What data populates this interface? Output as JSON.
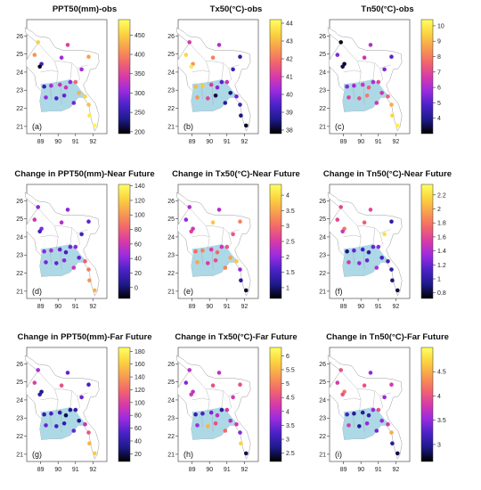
{
  "colorbar_gradient": [
    "#000000",
    "#1e1a8c",
    "#4b22c8",
    "#9a2be0",
    "#d83aa8",
    "#f2666c",
    "#f79d4f",
    "#fbd33f",
    "#ffff60"
  ],
  "map_fill_color": "#add8e6",
  "panels": [
    {
      "label": "(a)",
      "title": "PPT50(mm)-obs",
      "colorbar": {
        "min": 195,
        "max": 490,
        "ticks": [
          200,
          250,
          300,
          350,
          400,
          450
        ]
      },
      "points": [
        [
          88.85,
          25.65,
          452
        ],
        [
          88.65,
          24.95,
          410
        ],
        [
          89.05,
          24.45,
          262
        ],
        [
          88.95,
          24.3,
          205
        ],
        [
          90.2,
          24.8,
          310
        ],
        [
          90.55,
          25.5,
          350
        ],
        [
          91.75,
          24.85,
          420
        ],
        [
          91.35,
          24.15,
          310
        ],
        [
          89.2,
          23.2,
          255
        ],
        [
          89.6,
          23.25,
          310
        ],
        [
          90.1,
          23.3,
          330
        ],
        [
          90.45,
          23.15,
          335
        ],
        [
          90.7,
          23.45,
          300
        ],
        [
          91.0,
          23.45,
          380
        ],
        [
          91.2,
          22.85,
          430
        ],
        [
          89.3,
          22.6,
          305
        ],
        [
          89.9,
          22.55,
          270
        ],
        [
          90.35,
          22.7,
          280
        ],
        [
          90.9,
          22.3,
          285
        ],
        [
          91.55,
          22.65,
          455
        ],
        [
          91.75,
          22.2,
          440
        ],
        [
          91.8,
          21.6,
          470
        ],
        [
          92.1,
          21.05,
          480
        ]
      ]
    },
    {
      "label": "(b)",
      "title": "Tx50(°C)-obs",
      "colorbar": {
        "min": 37.8,
        "max": 44.2,
        "ticks": [
          38,
          39,
          40,
          41,
          42,
          43,
          44
        ]
      },
      "points": [
        [
          88.85,
          25.65,
          41.0
        ],
        [
          88.65,
          24.95,
          43.5
        ],
        [
          89.05,
          24.45,
          42.5
        ],
        [
          88.95,
          24.3,
          43.8
        ],
        [
          90.2,
          24.8,
          42.2
        ],
        [
          90.55,
          25.5,
          40.5
        ],
        [
          91.75,
          24.85,
          39.0
        ],
        [
          91.35,
          24.15,
          39.2
        ],
        [
          89.2,
          23.2,
          43.0
        ],
        [
          89.6,
          23.25,
          43.2
        ],
        [
          90.1,
          23.3,
          41.0
        ],
        [
          90.45,
          23.15,
          40.0
        ],
        [
          90.7,
          23.45,
          39.5
        ],
        [
          91.0,
          23.45,
          40.8
        ],
        [
          91.2,
          22.85,
          38.5
        ],
        [
          89.3,
          22.6,
          42.5
        ],
        [
          89.9,
          22.55,
          41.2
        ],
        [
          90.35,
          22.7,
          38.2
        ],
        [
          90.9,
          22.3,
          38.8
        ],
        [
          91.55,
          22.65,
          39.8
        ],
        [
          91.75,
          22.2,
          39.2
        ],
        [
          91.8,
          21.6,
          38.5
        ],
        [
          92.1,
          21.05,
          38.0
        ]
      ]
    },
    {
      "label": "(c)",
      "title": "Tn50(°C)-obs",
      "colorbar": {
        "min": 3.0,
        "max": 10.4,
        "ticks": [
          4,
          5,
          6,
          7,
          8,
          9,
          10
        ]
      },
      "points": [
        [
          88.85,
          25.65,
          3.2
        ],
        [
          88.65,
          24.95,
          5.5
        ],
        [
          89.05,
          24.45,
          3.3
        ],
        [
          88.95,
          24.3,
          3.5
        ],
        [
          90.2,
          24.8,
          6.5
        ],
        [
          90.55,
          25.5,
          6.2
        ],
        [
          91.75,
          24.85,
          5.0
        ],
        [
          91.35,
          24.15,
          5.5
        ],
        [
          89.2,
          23.2,
          5.5
        ],
        [
          89.6,
          23.25,
          5.8
        ],
        [
          90.1,
          23.3,
          6.5
        ],
        [
          90.45,
          23.15,
          7.5
        ],
        [
          90.7,
          23.45,
          6.0
        ],
        [
          91.0,
          23.45,
          7.0
        ],
        [
          91.2,
          22.85,
          6.5
        ],
        [
          89.3,
          22.6,
          6.8
        ],
        [
          89.9,
          22.55,
          7.2
        ],
        [
          90.35,
          22.7,
          8.0
        ],
        [
          90.9,
          22.3,
          6.5
        ],
        [
          91.55,
          22.65,
          7.5
        ],
        [
          91.75,
          22.2,
          8.8
        ],
        [
          91.8,
          21.6,
          9.5
        ],
        [
          92.1,
          21.05,
          10.0
        ]
      ]
    },
    {
      "label": "(d)",
      "title": "Change in PPT50(mm)-Near Future",
      "colorbar": {
        "min": -15,
        "max": 142,
        "ticks": [
          0,
          20,
          40,
          60,
          80,
          100,
          120,
          140
        ]
      },
      "points": [
        [
          88.85,
          25.65,
          40
        ],
        [
          88.65,
          24.95,
          60
        ],
        [
          89.05,
          24.45,
          40
        ],
        [
          88.95,
          24.3,
          20
        ],
        [
          90.2,
          24.8,
          50
        ],
        [
          90.55,
          25.5,
          40
        ],
        [
          91.75,
          24.85,
          30
        ],
        [
          91.35,
          24.15,
          20
        ],
        [
          89.2,
          23.2,
          40
        ],
        [
          89.6,
          23.25,
          50
        ],
        [
          90.1,
          23.3,
          30
        ],
        [
          90.45,
          23.15,
          20
        ],
        [
          90.7,
          23.45,
          35
        ],
        [
          91.0,
          23.45,
          40
        ],
        [
          91.2,
          22.85,
          30
        ],
        [
          89.3,
          22.6,
          35
        ],
        [
          89.9,
          22.55,
          30
        ],
        [
          90.35,
          22.7,
          40
        ],
        [
          90.9,
          22.3,
          60
        ],
        [
          91.55,
          22.65,
          80
        ],
        [
          91.75,
          22.2,
          90
        ],
        [
          91.8,
          21.6,
          100
        ],
        [
          92.1,
          21.05,
          110
        ]
      ]
    },
    {
      "label": "(e)",
      "title": "Change in Tx50(°C)-Near Future",
      "colorbar": {
        "min": 0.65,
        "max": 4.35,
        "ticks": [
          1.0,
          1.5,
          2.0,
          2.5,
          3.0,
          3.5,
          4.0
        ]
      },
      "points": [
        [
          88.85,
          25.65,
          2.2
        ],
        [
          88.65,
          24.95,
          2.0
        ],
        [
          89.05,
          24.45,
          2.4
        ],
        [
          88.95,
          24.3,
          2.6
        ],
        [
          90.2,
          24.8,
          3.8
        ],
        [
          90.55,
          25.5,
          2.2
        ],
        [
          91.75,
          24.85,
          3.2
        ],
        [
          91.35,
          24.15,
          2.8
        ],
        [
          89.2,
          23.2,
          3.0
        ],
        [
          89.6,
          23.25,
          3.2
        ],
        [
          90.1,
          23.3,
          2.5
        ],
        [
          90.45,
          23.15,
          3.0
        ],
        [
          90.7,
          23.45,
          2.4
        ],
        [
          91.0,
          23.45,
          2.8
        ],
        [
          91.2,
          22.85,
          3.5
        ],
        [
          89.3,
          22.6,
          3.5
        ],
        [
          89.9,
          22.55,
          2.5
        ],
        [
          90.35,
          22.7,
          2.7
        ],
        [
          90.9,
          22.3,
          3.2
        ],
        [
          91.55,
          22.65,
          3.8
        ],
        [
          91.75,
          22.2,
          2.0
        ],
        [
          91.8,
          21.6,
          1.2
        ],
        [
          92.1,
          21.05,
          0.8
        ]
      ]
    },
    {
      "label": "(f)",
      "title": "Change in Tn50(°C)-Near Future",
      "colorbar": {
        "min": 0.72,
        "max": 2.35,
        "ticks": [
          0.8,
          1.0,
          1.2,
          1.4,
          1.6,
          1.8,
          2.0,
          2.2
        ]
      },
      "points": [
        [
          88.85,
          25.65,
          1.6
        ],
        [
          88.65,
          24.95,
          1.6
        ],
        [
          89.05,
          24.45,
          1.8
        ],
        [
          88.95,
          24.3,
          1.5
        ],
        [
          90.2,
          24.8,
          1.7
        ],
        [
          90.55,
          25.5,
          1.6
        ],
        [
          91.75,
          24.85,
          1.0
        ],
        [
          91.35,
          24.15,
          2.2
        ],
        [
          89.2,
          23.2,
          0.9
        ],
        [
          89.6,
          23.25,
          1.2
        ],
        [
          90.1,
          23.3,
          1.1
        ],
        [
          90.45,
          23.15,
          1.0
        ],
        [
          90.7,
          23.45,
          1.2
        ],
        [
          91.0,
          23.45,
          1.3
        ],
        [
          91.2,
          22.85,
          1.1
        ],
        [
          89.3,
          22.6,
          1.5
        ],
        [
          89.9,
          22.55,
          1.3
        ],
        [
          90.35,
          22.7,
          1.2
        ],
        [
          90.9,
          22.3,
          1.4
        ],
        [
          91.55,
          22.65,
          1.1
        ],
        [
          91.75,
          22.2,
          1.0
        ],
        [
          91.8,
          21.6,
          0.9
        ],
        [
          92.1,
          21.05,
          0.8
        ]
      ]
    },
    {
      "label": "(g)",
      "title": "Change in PPT50(mm)-Far Future",
      "colorbar": {
        "min": 8,
        "max": 186,
        "ticks": [
          20,
          40,
          60,
          80,
          100,
          120,
          140,
          160,
          180
        ]
      },
      "points": [
        [
          88.85,
          25.65,
          80
        ],
        [
          88.65,
          24.95,
          100
        ],
        [
          89.05,
          24.45,
          30
        ],
        [
          88.95,
          24.3,
          40
        ],
        [
          90.2,
          24.8,
          110
        ],
        [
          90.55,
          25.5,
          60
        ],
        [
          91.75,
          24.85,
          50
        ],
        [
          91.35,
          24.15,
          60
        ],
        [
          89.2,
          23.2,
          40
        ],
        [
          89.6,
          23.25,
          50
        ],
        [
          90.1,
          23.3,
          40
        ],
        [
          90.45,
          23.15,
          20
        ],
        [
          90.7,
          23.45,
          30
        ],
        [
          91.0,
          23.45,
          40
        ],
        [
          91.2,
          22.85,
          30
        ],
        [
          89.3,
          22.6,
          60
        ],
        [
          89.9,
          22.55,
          50
        ],
        [
          90.35,
          22.7,
          40
        ],
        [
          90.9,
          22.3,
          60
        ],
        [
          91.55,
          22.65,
          90
        ],
        [
          91.75,
          22.2,
          110
        ],
        [
          91.8,
          21.6,
          150
        ],
        [
          92.1,
          21.05,
          160
        ]
      ]
    },
    {
      "label": "(h)",
      "title": "Change in Tx50(°C)-Far Future",
      "colorbar": {
        "min": 2.2,
        "max": 6.3,
        "ticks": [
          2.5,
          3.0,
          3.5,
          4.0,
          4.5,
          5.0,
          5.5,
          6.0
        ]
      },
      "points": [
        [
          88.85,
          25.65,
          4.0
        ],
        [
          88.65,
          24.95,
          3.6
        ],
        [
          89.05,
          24.45,
          4.0
        ],
        [
          88.95,
          24.3,
          4.2
        ],
        [
          90.2,
          24.8,
          4.5
        ],
        [
          90.55,
          25.5,
          4.0
        ],
        [
          91.75,
          24.85,
          4.5
        ],
        [
          91.35,
          24.15,
          4.2
        ],
        [
          89.2,
          23.2,
          3.0
        ],
        [
          89.6,
          23.25,
          3.2
        ],
        [
          90.1,
          23.3,
          3.5
        ],
        [
          90.45,
          23.15,
          4.0
        ],
        [
          90.7,
          23.45,
          2.8
        ],
        [
          91.0,
          23.45,
          4.2
        ],
        [
          91.2,
          22.85,
          4.0
        ],
        [
          89.3,
          22.6,
          3.8
        ],
        [
          89.9,
          22.55,
          5.5
        ],
        [
          90.35,
          22.7,
          4.5
        ],
        [
          90.9,
          22.3,
          4.8
        ],
        [
          91.55,
          22.65,
          4.2
        ],
        [
          91.75,
          22.2,
          3.6
        ],
        [
          91.8,
          21.6,
          5.8
        ],
        [
          92.1,
          21.05,
          2.5
        ]
      ]
    },
    {
      "label": "(i)",
      "title": "Change in Tn50(°C)-Far Future",
      "colorbar": {
        "min": 2.65,
        "max": 5.0,
        "ticks": [
          3.0,
          3.5,
          4.0,
          4.5
        ]
      },
      "points": [
        [
          88.85,
          25.65,
          4.0
        ],
        [
          88.65,
          24.95,
          3.8
        ],
        [
          89.05,
          24.45,
          4.2
        ],
        [
          88.95,
          24.3,
          4.0
        ],
        [
          90.2,
          24.8,
          4.0
        ],
        [
          90.55,
          25.5,
          3.5
        ],
        [
          91.75,
          24.85,
          3.8
        ],
        [
          91.35,
          24.15,
          3.5
        ],
        [
          89.2,
          23.2,
          3.2
        ],
        [
          89.6,
          23.25,
          3.0
        ],
        [
          90.1,
          23.3,
          3.0
        ],
        [
          90.45,
          23.15,
          3.1
        ],
        [
          90.7,
          23.45,
          3.5
        ],
        [
          91.0,
          23.45,
          4.0
        ],
        [
          91.2,
          22.85,
          3.5
        ],
        [
          89.3,
          22.6,
          3.8
        ],
        [
          89.9,
          22.55,
          3.0
        ],
        [
          90.35,
          22.7,
          3.5
        ],
        [
          90.9,
          22.3,
          3.4
        ],
        [
          91.55,
          22.65,
          3.8
        ],
        [
          91.75,
          22.2,
          4.5
        ],
        [
          91.8,
          21.6,
          3.0
        ],
        [
          92.1,
          21.05,
          2.8
        ]
      ]
    }
  ],
  "axes": {
    "x_ticks": [
      89,
      90,
      91,
      92
    ],
    "y_ticks": [
      21,
      22,
      23,
      24,
      25,
      26
    ],
    "xlim": [
      88.2,
      92.8
    ],
    "ylim": [
      20.6,
      26.9
    ]
  }
}
